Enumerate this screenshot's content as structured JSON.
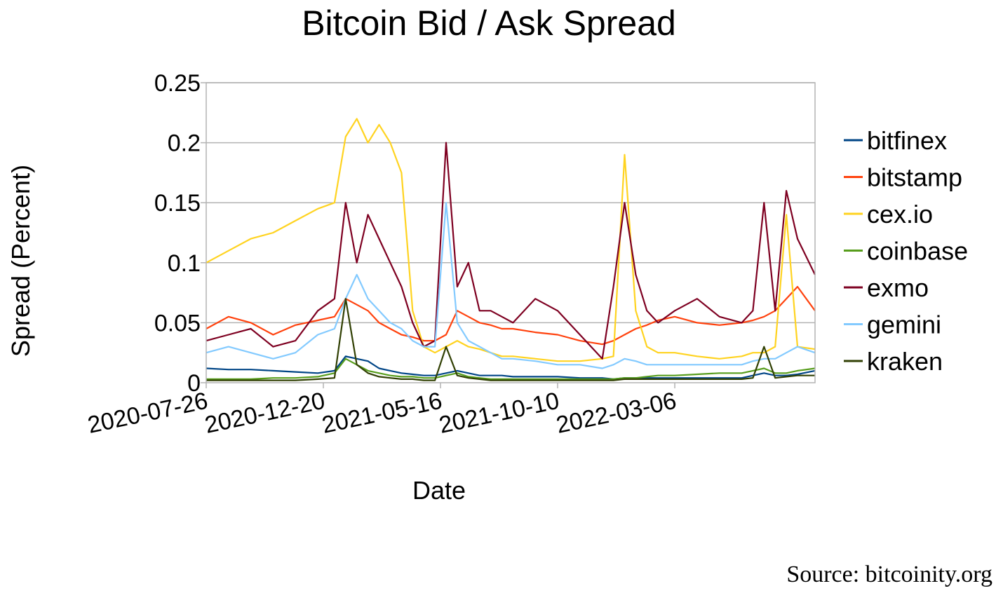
{
  "chart_data": {
    "type": "line",
    "title": "Bitcoin Bid / Ask Spread",
    "xlabel": "Date",
    "ylabel": "Spread (Percent)",
    "ylim": [
      0,
      0.25
    ],
    "yticks": [
      "0",
      "0.05",
      "0.1",
      "0.15",
      "0.2",
      "0.25"
    ],
    "xlim": [
      "2020-07-26",
      "2022-08-29"
    ],
    "xticks": [
      "2020-07-26",
      "2020-12-20",
      "2021-05-16",
      "2021-10-10",
      "2022-03-06"
    ],
    "grid": "horizontal",
    "legend_position": "right",
    "x": [
      "2020-07-26",
      "2020-08-23",
      "2020-09-20",
      "2020-10-18",
      "2020-11-15",
      "2020-12-13",
      "2021-01-03",
      "2021-01-17",
      "2021-01-31",
      "2021-02-14",
      "2021-02-28",
      "2021-03-14",
      "2021-03-28",
      "2021-04-11",
      "2021-04-25",
      "2021-05-09",
      "2021-05-23",
      "2021-06-06",
      "2021-06-20",
      "2021-07-04",
      "2021-07-18",
      "2021-08-01",
      "2021-08-15",
      "2021-09-12",
      "2021-10-10",
      "2021-11-07",
      "2021-12-05",
      "2021-12-19",
      "2022-01-02",
      "2022-01-16",
      "2022-01-30",
      "2022-02-13",
      "2022-03-06",
      "2022-04-03",
      "2022-05-01",
      "2022-05-29",
      "2022-06-12",
      "2022-06-26",
      "2022-07-10",
      "2022-07-24",
      "2022-08-07",
      "2022-08-29"
    ],
    "series": [
      {
        "name": "bitfinex",
        "color": "#004586",
        "values": [
          0.012,
          0.011,
          0.011,
          0.01,
          0.009,
          0.008,
          0.01,
          0.022,
          0.02,
          0.018,
          0.012,
          0.01,
          0.008,
          0.007,
          0.006,
          0.006,
          0.008,
          0.01,
          0.008,
          0.006,
          0.006,
          0.006,
          0.005,
          0.005,
          0.005,
          0.004,
          0.004,
          0.003,
          0.004,
          0.004,
          0.004,
          0.004,
          0.004,
          0.004,
          0.004,
          0.004,
          0.006,
          0.008,
          0.006,
          0.006,
          0.007,
          0.01
        ]
      },
      {
        "name": "bitstamp",
        "color": "#ff420e",
        "values": [
          0.045,
          0.055,
          0.05,
          0.04,
          0.048,
          0.052,
          0.055,
          0.07,
          0.065,
          0.06,
          0.05,
          0.045,
          0.04,
          0.038,
          0.035,
          0.035,
          0.04,
          0.06,
          0.055,
          0.05,
          0.048,
          0.045,
          0.045,
          0.042,
          0.04,
          0.035,
          0.032,
          0.035,
          0.04,
          0.045,
          0.048,
          0.052,
          0.055,
          0.05,
          0.048,
          0.05,
          0.052,
          0.055,
          0.06,
          0.07,
          0.08,
          0.06
        ]
      },
      {
        "name": "cex.io",
        "color": "#ffd320",
        "values": [
          0.1,
          0.11,
          0.12,
          0.125,
          0.135,
          0.145,
          0.15,
          0.205,
          0.22,
          0.2,
          0.215,
          0.2,
          0.175,
          0.06,
          0.03,
          0.025,
          0.03,
          0.035,
          0.03,
          0.028,
          0.025,
          0.022,
          0.022,
          0.02,
          0.018,
          0.018,
          0.02,
          0.022,
          0.19,
          0.06,
          0.03,
          0.025,
          0.025,
          0.022,
          0.02,
          0.022,
          0.025,
          0.025,
          0.03,
          0.14,
          0.03,
          0.028
        ]
      },
      {
        "name": "coinbase",
        "color": "#579d1c",
        "values": [
          0.003,
          0.003,
          0.003,
          0.004,
          0.004,
          0.005,
          0.008,
          0.02,
          0.015,
          0.01,
          0.008,
          0.006,
          0.005,
          0.005,
          0.004,
          0.004,
          0.006,
          0.008,
          0.005,
          0.004,
          0.003,
          0.003,
          0.003,
          0.003,
          0.003,
          0.003,
          0.003,
          0.003,
          0.004,
          0.004,
          0.005,
          0.006,
          0.006,
          0.007,
          0.008,
          0.008,
          0.01,
          0.012,
          0.008,
          0.008,
          0.01,
          0.012
        ]
      },
      {
        "name": "exmo",
        "color": "#7e0021",
        "values": [
          0.035,
          0.04,
          0.045,
          0.03,
          0.035,
          0.06,
          0.07,
          0.15,
          0.1,
          0.14,
          0.12,
          0.1,
          0.08,
          0.05,
          0.03,
          0.035,
          0.2,
          0.08,
          0.1,
          0.06,
          0.06,
          0.055,
          0.05,
          0.07,
          0.06,
          0.04,
          0.02,
          0.08,
          0.15,
          0.09,
          0.06,
          0.05,
          0.06,
          0.07,
          0.055,
          0.05,
          0.06,
          0.15,
          0.06,
          0.16,
          0.12,
          0.09
        ]
      },
      {
        "name": "gemini",
        "color": "#83caff",
        "values": [
          0.025,
          0.03,
          0.025,
          0.02,
          0.025,
          0.04,
          0.045,
          0.07,
          0.09,
          0.07,
          0.06,
          0.05,
          0.045,
          0.035,
          0.03,
          0.03,
          0.15,
          0.05,
          0.035,
          0.03,
          0.025,
          0.02,
          0.02,
          0.018,
          0.015,
          0.015,
          0.012,
          0.015,
          0.02,
          0.018,
          0.015,
          0.015,
          0.015,
          0.015,
          0.015,
          0.015,
          0.018,
          0.02,
          0.02,
          0.025,
          0.03,
          0.025
        ]
      },
      {
        "name": "kraken",
        "color": "#314004",
        "values": [
          0.002,
          0.002,
          0.002,
          0.002,
          0.002,
          0.003,
          0.004,
          0.07,
          0.015,
          0.008,
          0.005,
          0.004,
          0.003,
          0.003,
          0.002,
          0.002,
          0.03,
          0.006,
          0.004,
          0.003,
          0.002,
          0.002,
          0.002,
          0.002,
          0.002,
          0.002,
          0.002,
          0.002,
          0.003,
          0.003,
          0.003,
          0.003,
          0.003,
          0.003,
          0.003,
          0.003,
          0.004,
          0.03,
          0.004,
          0.005,
          0.006,
          0.006
        ]
      }
    ]
  },
  "footer": {
    "source_text": "Source:  bitcoinity.org"
  }
}
